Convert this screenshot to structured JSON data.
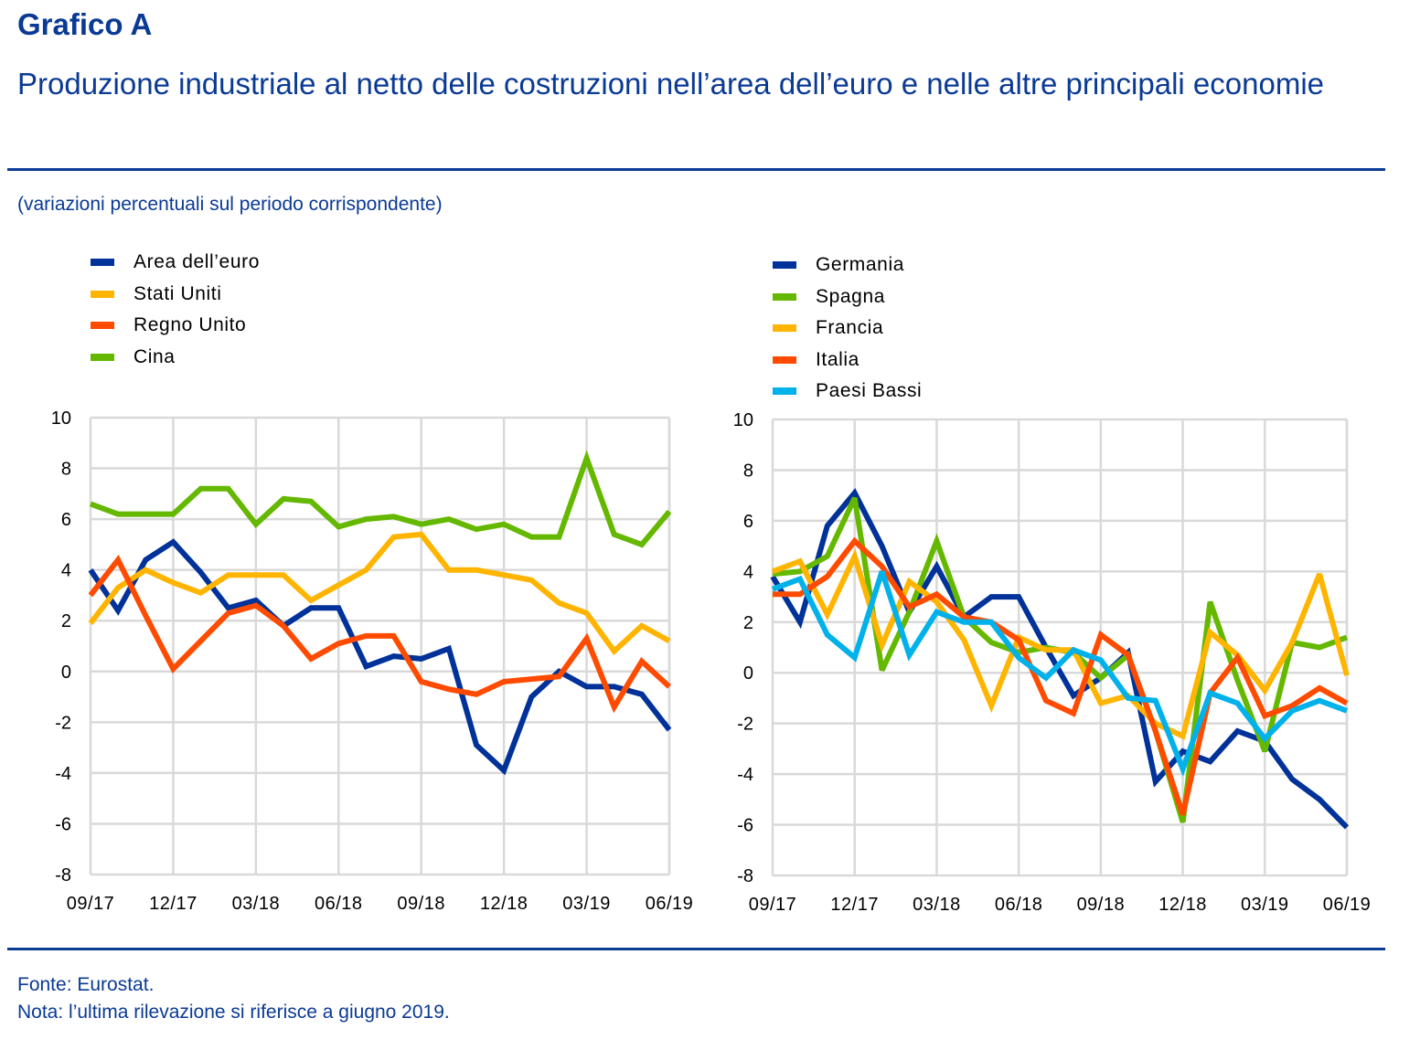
{
  "header": {
    "title": "Grafico A",
    "subtitle": "Produzione industriale al netto delle costruzioni nell’area dell’euro e nelle altre principali economie",
    "units": "(variazioni percentuali sul periodo corrispondente)"
  },
  "footer": {
    "source": "Fonte: Eurostat.",
    "note": "Nota: l’ultima rilevazione si riferisce a giugno 2019."
  },
  "chart_data": [
    {
      "type": "line",
      "title": "",
      "xlabel": "",
      "ylabel": "",
      "ylim": [
        -8,
        10
      ],
      "yticks": [
        "10",
        "8",
        "6",
        "4",
        "2",
        "0",
        "-2",
        "-4",
        "-6",
        "-8"
      ],
      "ytick_values": [
        10,
        8,
        6,
        4,
        2,
        0,
        -2,
        -4,
        -6,
        -8
      ],
      "x": [
        "09/17",
        "10/17",
        "11/17",
        "12/17",
        "01/18",
        "02/18",
        "03/18",
        "04/18",
        "05/18",
        "06/18",
        "07/18",
        "08/18",
        "09/18",
        "10/18",
        "11/18",
        "12/18",
        "01/19",
        "02/19",
        "03/19",
        "04/19",
        "05/19",
        "06/19"
      ],
      "xtick_labels": [
        "09/17",
        "12/17",
        "03/18",
        "06/18",
        "09/18",
        "12/18",
        "03/19",
        "06/19"
      ],
      "grid": true,
      "legend_position": "top-left",
      "series": [
        {
          "name": "Area dell’euro",
          "color": "#003299",
          "values": [
            4.0,
            2.4,
            4.4,
            5.1,
            3.9,
            2.5,
            2.8,
            1.8,
            2.5,
            2.5,
            0.2,
            0.6,
            0.5,
            0.9,
            -2.9,
            -3.9,
            -1.0,
            0.0,
            -0.6,
            -0.6,
            -0.9,
            -2.3
          ]
        },
        {
          "name": "Stati Uniti",
          "color": "#FFB400",
          "values": [
            1.9,
            3.3,
            4.0,
            3.5,
            3.1,
            3.8,
            3.8,
            3.8,
            2.8,
            3.4,
            4.0,
            5.3,
            5.4,
            4.0,
            4.0,
            3.8,
            3.6,
            2.7,
            2.3,
            0.8,
            1.8,
            1.2
          ]
        },
        {
          "name": "Regno Unito",
          "color": "#FF4B00",
          "values": [
            3.0,
            4.4,
            2.2,
            0.1,
            1.2,
            2.3,
            2.6,
            1.8,
            0.5,
            1.1,
            1.4,
            1.4,
            -0.4,
            -0.7,
            -0.9,
            -0.4,
            -0.3,
            -0.2,
            1.3,
            -1.4,
            0.4,
            -0.6
          ]
        },
        {
          "name": "Cina",
          "color": "#65B800",
          "values": [
            6.6,
            6.2,
            6.2,
            6.2,
            7.2,
            7.2,
            5.8,
            6.8,
            6.7,
            5.7,
            6.0,
            6.1,
            5.8,
            6.0,
            5.6,
            5.8,
            5.3,
            5.3,
            8.4,
            5.4,
            5.0,
            6.3
          ]
        }
      ]
    },
    {
      "type": "line",
      "title": "",
      "xlabel": "",
      "ylabel": "",
      "ylim": [
        -8,
        10
      ],
      "yticks": [
        "10",
        "8",
        "6",
        "4",
        "2",
        "0",
        "-2",
        "-4",
        "-6",
        "-8"
      ],
      "ytick_values": [
        10,
        8,
        6,
        4,
        2,
        0,
        -2,
        -4,
        -6,
        -8
      ],
      "x": [
        "09/17",
        "10/17",
        "11/17",
        "12/17",
        "01/18",
        "02/18",
        "03/18",
        "04/18",
        "05/18",
        "06/18",
        "07/18",
        "08/18",
        "09/18",
        "10/18",
        "11/18",
        "12/18",
        "01/19",
        "02/19",
        "03/19",
        "04/19",
        "05/19",
        "06/19"
      ],
      "xtick_labels": [
        "09/17",
        "12/17",
        "03/18",
        "06/18",
        "09/18",
        "12/18",
        "03/19",
        "06/19"
      ],
      "grid": true,
      "legend_position": "top-left",
      "series": [
        {
          "name": "Germania",
          "color": "#003299",
          "values": [
            3.8,
            2.0,
            5.8,
            7.1,
            5.0,
            2.4,
            4.2,
            2.2,
            3.0,
            3.0,
            1.0,
            -0.9,
            -0.2,
            0.8,
            -4.3,
            -3.1,
            -3.5,
            -2.3,
            -2.7,
            -4.2,
            -5.0,
            -6.1
          ]
        },
        {
          "name": "Spagna",
          "color": "#65B800",
          "values": [
            3.9,
            4.0,
            4.6,
            6.9,
            0.1,
            2.4,
            5.2,
            2.2,
            1.2,
            0.8,
            1.0,
            0.8,
            -0.2,
            0.7,
            -2.3,
            -5.9,
            2.8,
            -0.3,
            -3.1,
            1.2,
            1.0,
            1.4
          ]
        },
        {
          "name": "Francia",
          "color": "#FFB400",
          "values": [
            4.0,
            4.4,
            2.3,
            4.6,
            1.1,
            3.6,
            2.8,
            1.3,
            -1.3,
            1.4,
            0.9,
            0.9,
            -1.2,
            -0.9,
            -2.0,
            -2.5,
            1.6,
            0.7,
            -0.7,
            1.2,
            3.9,
            -0.1
          ]
        },
        {
          "name": "Italia",
          "color": "#FF4B00",
          "values": [
            3.1,
            3.1,
            3.8,
            5.2,
            4.2,
            2.6,
            3.1,
            2.2,
            2.0,
            1.3,
            -1.1,
            -1.6,
            1.5,
            0.7,
            -2.3,
            -5.6,
            -0.8,
            0.6,
            -1.7,
            -1.3,
            -0.6,
            -1.2
          ]
        },
        {
          "name": "Paesi Bassi",
          "color": "#00B1EA",
          "values": [
            3.3,
            3.7,
            1.5,
            0.6,
            4.0,
            0.7,
            2.4,
            2.0,
            2.0,
            0.6,
            -0.2,
            0.9,
            0.5,
            -1.0,
            -1.1,
            -3.8,
            -0.8,
            -1.2,
            -2.6,
            -1.5,
            -1.1,
            -1.5
          ]
        }
      ]
    }
  ]
}
